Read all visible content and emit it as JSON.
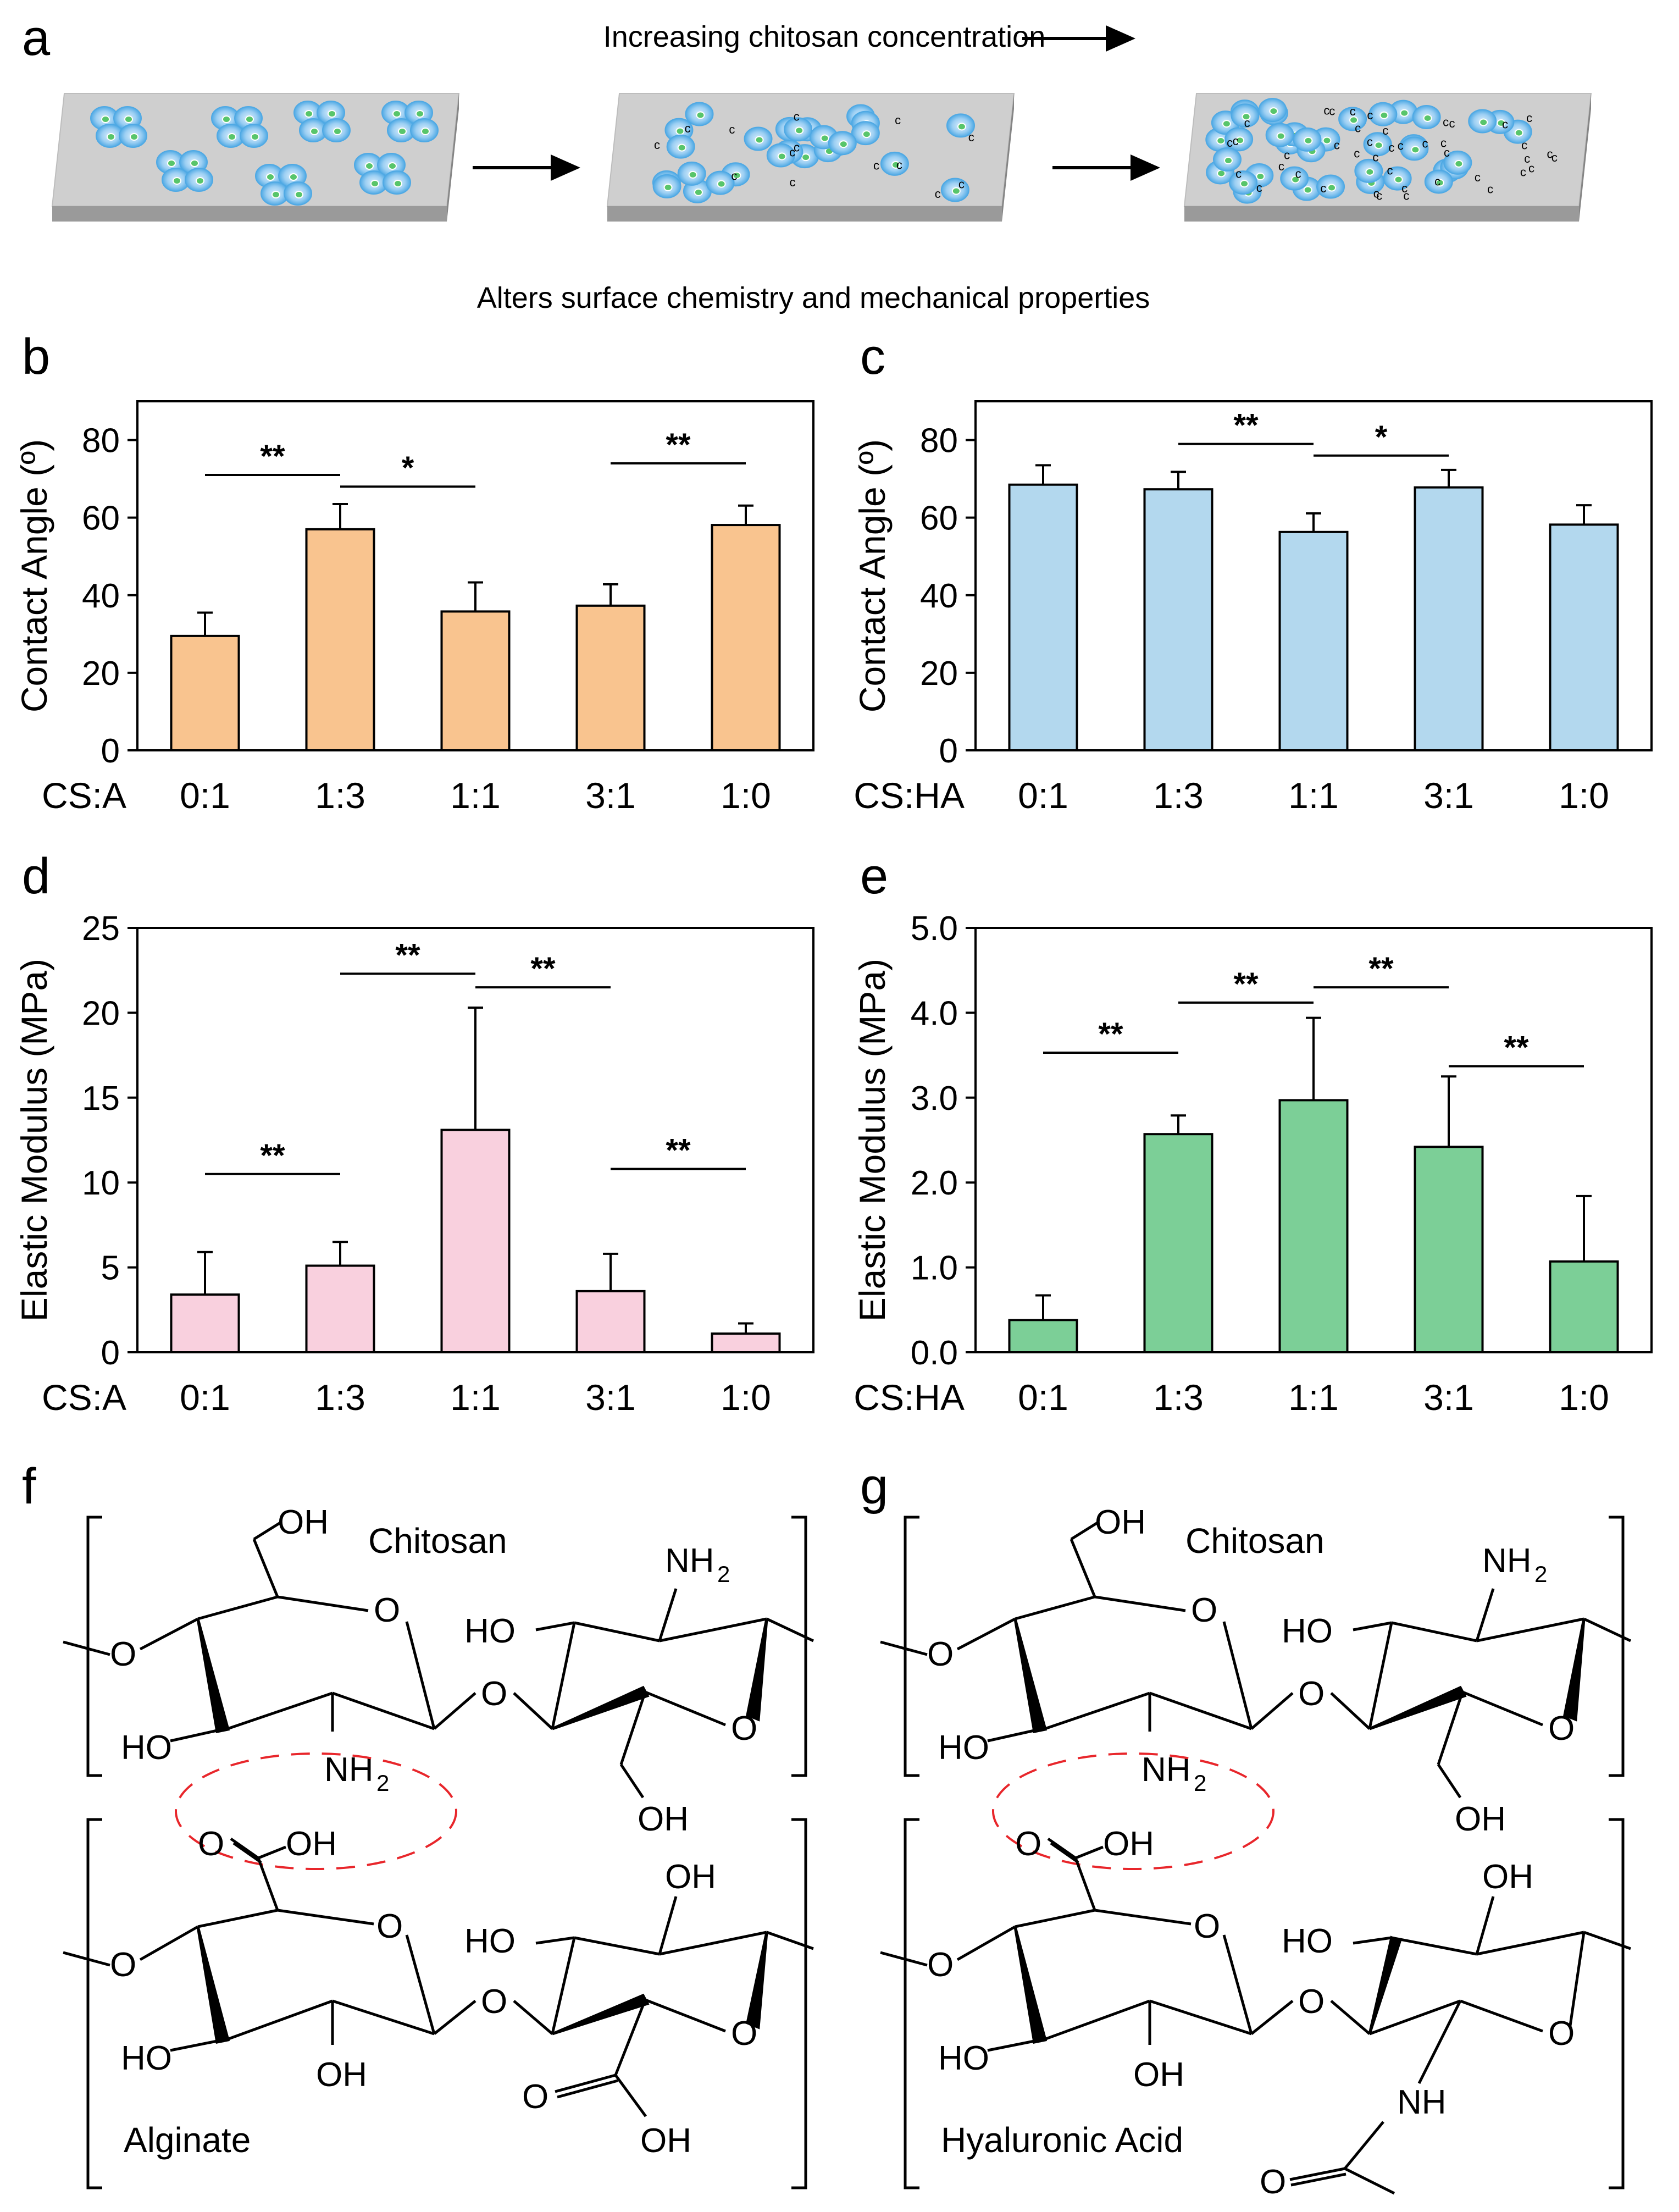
{
  "panels": [
    "a",
    "b",
    "c",
    "d",
    "e",
    "f",
    "g"
  ],
  "schematic": {
    "top_label": "Increasing chitosan concentration",
    "bottom_label": "Alters surface chemistry and mechanical properties",
    "marker": "c"
  },
  "colors": {
    "alginate_contact": "#f9c48f",
    "ha_contact": "#b3d8ee",
    "alginate_modulus": "#f9d0de",
    "ha_modulus": "#7ccf97",
    "surface": "#cfcfcf",
    "cell": "#4fa9e4",
    "nucleus": "#58c56b",
    "dashed_circle": "#e8262b"
  },
  "chart_data": [
    {
      "panel": "b",
      "type": "bar",
      "xprefix": "CS:A",
      "categories": [
        "0:1",
        "1:3",
        "1:1",
        "3:1",
        "1:0"
      ],
      "values": [
        29.5,
        57,
        35.8,
        37.3,
        58.1
      ],
      "errors": [
        6.0,
        6.5,
        7.5,
        5.5,
        5.0
      ],
      "ylabel": "Contact Angle (º)",
      "ylim": [
        0,
        90
      ],
      "yticks": [
        "0",
        "20",
        "40",
        "60",
        "80"
      ],
      "significance": [
        {
          "from": 0,
          "to": 1,
          "label": "**",
          "y": 71
        },
        {
          "from": 1,
          "to": 2,
          "label": "*",
          "y": 68
        },
        {
          "from": 3,
          "to": 4,
          "label": "**",
          "y": 74
        }
      ]
    },
    {
      "panel": "c",
      "type": "bar",
      "xprefix": "CS:HA",
      "categories": [
        "0:1",
        "1:3",
        "1:1",
        "3:1",
        "1:0"
      ],
      "values": [
        68.5,
        67.3,
        56.3,
        67.8,
        58.2
      ],
      "errors": [
        5.0,
        4.5,
        4.8,
        4.5,
        5.0
      ],
      "ylabel": "Contact Angle (º)",
      "ylim": [
        0,
        90
      ],
      "yticks": [
        "0",
        "20",
        "40",
        "60",
        "80"
      ],
      "significance": [
        {
          "from": 1,
          "to": 2,
          "label": "**",
          "y": 79
        },
        {
          "from": 2,
          "to": 3,
          "label": "*",
          "y": 76
        }
      ]
    },
    {
      "panel": "d",
      "type": "bar",
      "xprefix": "CS:A",
      "categories": [
        "0:1",
        "1:3",
        "1:1",
        "3:1",
        "1:0"
      ],
      "values": [
        3.4,
        5.1,
        13.1,
        3.6,
        1.1
      ],
      "errors": [
        2.5,
        1.4,
        7.2,
        2.2,
        0.6
      ],
      "ylabel": "Elastic Modulus (MPa)",
      "ylim": [
        0,
        25
      ],
      "yticks": [
        "0",
        "5",
        "10",
        "15",
        "20",
        "25"
      ],
      "significance": [
        {
          "from": 0,
          "to": 1,
          "label": "**",
          "y": 10.5
        },
        {
          "from": 1,
          "to": 2,
          "label": "**",
          "y": 22.3
        },
        {
          "from": 2,
          "to": 3,
          "label": "**",
          "y": 21.5
        },
        {
          "from": 3,
          "to": 4,
          "label": "**",
          "y": 10.8
        }
      ]
    },
    {
      "panel": "e",
      "type": "bar",
      "xprefix": "CS:HA",
      "categories": [
        "0:1",
        "1:3",
        "1:1",
        "3:1",
        "1:0"
      ],
      "values": [
        0.38,
        2.57,
        2.97,
        2.42,
        1.07
      ],
      "errors": [
        0.29,
        0.22,
        0.97,
        0.83,
        0.77
      ],
      "ylabel": "Elastic Modulus (MPa)",
      "ylim": [
        0,
        5
      ],
      "yticks": [
        "0.0",
        "1.0",
        "2.0",
        "3.0",
        "4.0",
        "5.0"
      ],
      "significance": [
        {
          "from": 0,
          "to": 1,
          "label": "**",
          "y": 3.53
        },
        {
          "from": 1,
          "to": 2,
          "label": "**",
          "y": 4.12
        },
        {
          "from": 2,
          "to": 3,
          "label": "**",
          "y": 4.3
        },
        {
          "from": 3,
          "to": 4,
          "label": "**",
          "y": 3.37
        }
      ]
    }
  ],
  "structures": {
    "chitosan": {
      "name": "Chitosan",
      "oh": "OH",
      "ho": "HO",
      "o": "O",
      "nh": "NH",
      "sub2": "2"
    },
    "alginate": {
      "name": "Alginate",
      "oh": "OH",
      "ho": "HO",
      "o": "O"
    },
    "hyaluronic": {
      "name": "Hyaluronic Acid",
      "oh": "OH",
      "ho": "HO",
      "o": "O",
      "nh": "NH"
    }
  }
}
